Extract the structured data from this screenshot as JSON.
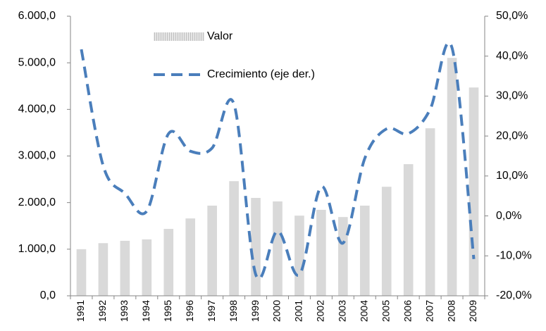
{
  "chart_data": {
    "type": "bar_line",
    "categories": [
      "1991",
      "1992",
      "1993",
      "1994",
      "1995",
      "1996",
      "1997",
      "1998",
      "1999",
      "2000",
      "2001",
      "2002",
      "2003",
      "2004",
      "2005",
      "2006",
      "2007",
      "2008",
      "2009"
    ],
    "series": [
      {
        "name": "Valor",
        "color": "#d9d9d9",
        "type": "bar",
        "values": [
          1000,
          1130,
          1180,
          1210,
          1435,
          1660,
          1935,
          2460,
          2100,
          2025,
          1720,
          1845,
          1690,
          1935,
          2340,
          2825,
          3595,
          5105,
          4470
        ]
      },
      {
        "name": "Crecimiento (eje der.)",
        "color": "#4a7ebb",
        "type": "line",
        "axis": "y2",
        "values": [
          41.7,
          12.6,
          5.6,
          1.2,
          20.6,
          16.2,
          17.0,
          28.0,
          -14.7,
          -3.8,
          -14.7,
          7.3,
          -6.8,
          14.4,
          21.8,
          20.6,
          26.7,
          42.1,
          -10.8
        ]
      }
    ],
    "ylim": [
      0,
      6000
    ],
    "yticks": [
      {
        "value": 0,
        "label": "0,0"
      },
      {
        "value": 1000,
        "label": "1.000,0"
      },
      {
        "value": 2000,
        "label": "2.000,0"
      },
      {
        "value": 3000,
        "label": "3.000,0"
      },
      {
        "value": 4000,
        "label": "4.000,0"
      },
      {
        "value": 5000,
        "label": "5.000,0"
      },
      {
        "value": 6000,
        "label": "6.000,0"
      }
    ],
    "y2lim": [
      -20,
      50
    ],
    "y2ticks": [
      {
        "value": -20,
        "label": "-20,0%"
      },
      {
        "value": -10,
        "label": "-10,0%"
      },
      {
        "value": 0,
        "label": "0,0%"
      },
      {
        "value": 10,
        "label": "10,0%"
      },
      {
        "value": 20,
        "label": "20,0%"
      },
      {
        "value": 30,
        "label": "30,0%"
      },
      {
        "value": 40,
        "label": "40,0%"
      },
      {
        "value": 50,
        "label": "50,0%"
      }
    ]
  }
}
